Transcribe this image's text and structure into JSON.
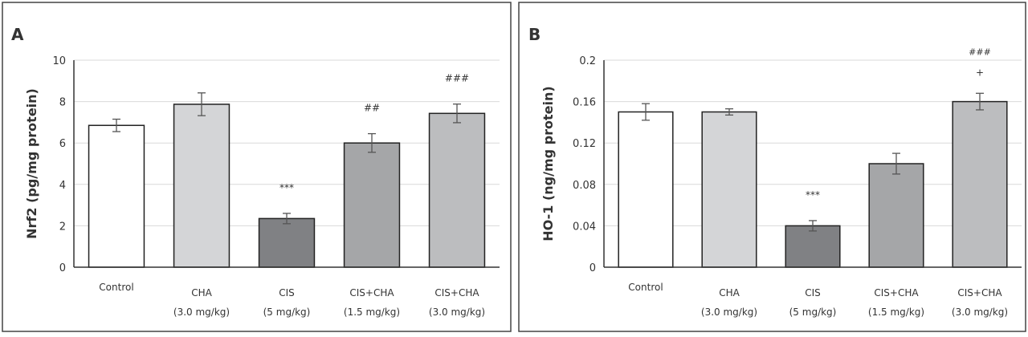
{
  "chart_data": [
    {
      "type": "bar",
      "panel_label": "A",
      "ylabel": "Nrf2 (pg/mg protein)",
      "ylim": [
        0,
        10
      ],
      "yticks": [
        "0",
        "2",
        "4",
        "6",
        "8",
        "10"
      ],
      "ytick_values": [
        0,
        2,
        4,
        6,
        8,
        10
      ],
      "grid": true,
      "categories": [
        {
          "line1": "Control",
          "line2": ""
        },
        {
          "line1": "CHA",
          "line2": "(3.0 mg/kg)"
        },
        {
          "line1": "CIS",
          "line2": "(5 mg/kg)"
        },
        {
          "line1": "CIS+CHA",
          "line2": "(1.5 mg/kg)"
        },
        {
          "line1": "CIS+CHA",
          "line2": "(3.0 mg/kg)"
        }
      ],
      "values": [
        6.85,
        7.87,
        2.35,
        6.0,
        7.43
      ],
      "errors": [
        0.3,
        0.55,
        0.25,
        0.45,
        0.45
      ],
      "annotations": [
        "",
        "",
        "***",
        "##",
        "###"
      ],
      "annotations2": [
        "",
        "",
        "",
        "",
        ""
      ],
      "colors": [
        "#ffffff",
        "#d4d5d7",
        "#808184",
        "#a5a6a8",
        "#bcbdbf"
      ]
    },
    {
      "type": "bar",
      "panel_label": "B",
      "ylabel": "HO-1 (ng/mg protein)",
      "ylim": [
        0,
        0.2
      ],
      "yticks": [
        "0",
        "0.04",
        "0.08",
        "0.12",
        "0.16",
        "0.2"
      ],
      "ytick_values": [
        0,
        0.04,
        0.08,
        0.12,
        0.16,
        0.2
      ],
      "grid": true,
      "categories": [
        {
          "line1": "Control",
          "line2": ""
        },
        {
          "line1": "CHA",
          "line2": "(3.0 mg/kg)"
        },
        {
          "line1": "CIS",
          "line2": "(5 mg/kg)"
        },
        {
          "line1": "CIS+CHA",
          "line2": "(1.5 mg/kg)"
        },
        {
          "line1": "CIS+CHA",
          "line2": "(3.0 mg/kg)"
        }
      ],
      "values": [
        0.15,
        0.15,
        0.04,
        0.1,
        0.16
      ],
      "errors": [
        0.008,
        0.003,
        0.005,
        0.01,
        0.008
      ],
      "annotations": [
        "",
        "",
        "***",
        "",
        "###"
      ],
      "annotations2": [
        "",
        "",
        "",
        "",
        "+"
      ],
      "colors": [
        "#ffffff",
        "#d4d5d7",
        "#808184",
        "#a5a6a8",
        "#bcbdbf"
      ]
    }
  ]
}
